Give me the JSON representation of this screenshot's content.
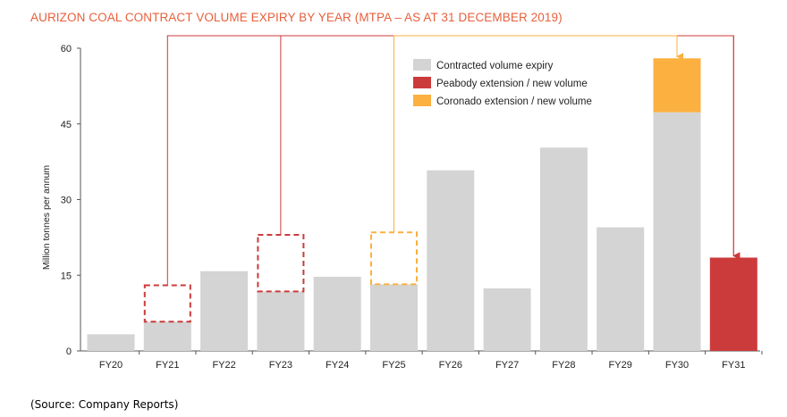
{
  "chart_data": {
    "type": "bar",
    "title": "AURIZON COAL CONTRACT VOLUME EXPIRY BY YEAR (MTPA – AS AT 31 DECEMBER 2019)",
    "ylabel": "Million tonnes per annum",
    "xlabel": "",
    "categories": [
      "FY20",
      "FY21",
      "FY22",
      "FY23",
      "FY24",
      "FY25",
      "FY26",
      "FY27",
      "FY28",
      "FY29",
      "FY30",
      "FY31"
    ],
    "ylim": [
      0,
      60
    ],
    "yticks": [
      0,
      15,
      30,
      45,
      60
    ],
    "series": [
      {
        "name": "Contracted volume expiry",
        "color": "#d4d4d4",
        "values": [
          3.3,
          5.8,
          15.8,
          11.8,
          14.7,
          13.2,
          35.8,
          12.4,
          40.3,
          24.5,
          47.3,
          0
        ]
      },
      {
        "name": "Peabody extension / new volume",
        "color": "#cc3b3b",
        "values": [
          0,
          0,
          0,
          0,
          0,
          0,
          0,
          0,
          0,
          0,
          0,
          18.5
        ]
      },
      {
        "name": "Coronado extension / new volume",
        "color": "#fbb040",
        "values": [
          0,
          0,
          0,
          0,
          0,
          0,
          0,
          0,
          0,
          0,
          10.7,
          0
        ]
      }
    ],
    "moved_volumes": [
      {
        "category": "FY21",
        "from": 5.8,
        "to": 13.0,
        "series": "Peabody extension / new volume",
        "target": "FY31"
      },
      {
        "category": "FY23",
        "from": 11.8,
        "to": 23.0,
        "series": "Peabody extension / new volume",
        "target": "FY31"
      },
      {
        "category": "FY25",
        "from": 13.2,
        "to": 23.5,
        "series": "Coronado extension / new volume",
        "target": "FY30"
      }
    ],
    "legend_position": "top-right",
    "grid": false
  },
  "source": "(Source: Company Reports)"
}
